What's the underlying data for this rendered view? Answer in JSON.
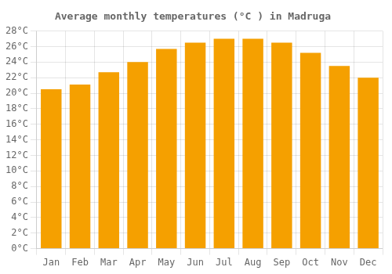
{
  "chart_data": {
    "type": "bar",
    "title": "Average monthly temperatures (°C ) in Madruga",
    "categories": [
      "Jan",
      "Feb",
      "Mar",
      "Apr",
      "May",
      "Jun",
      "Jul",
      "Aug",
      "Sep",
      "Oct",
      "Nov",
      "Dec"
    ],
    "values": [
      20.5,
      21.1,
      22.7,
      24.0,
      25.7,
      26.5,
      27.0,
      27.0,
      26.5,
      25.2,
      23.5,
      22.0
    ],
    "color": "#F5A000",
    "ylim": [
      0,
      28
    ],
    "yticks": [
      {
        "value": 0,
        "label": "0°C"
      },
      {
        "value": 2,
        "label": "2°C"
      },
      {
        "value": 4,
        "label": "4°C"
      },
      {
        "value": 6,
        "label": "6°C"
      },
      {
        "value": 8,
        "label": "8°C"
      },
      {
        "value": 10,
        "label": "10°C"
      },
      {
        "value": 12,
        "label": "12°C"
      },
      {
        "value": 14,
        "label": "14°C"
      },
      {
        "value": 16,
        "label": "16°C"
      },
      {
        "value": 18,
        "label": "18°C"
      },
      {
        "value": 20,
        "label": "20°C"
      },
      {
        "value": 22,
        "label": "22°C"
      },
      {
        "value": 24,
        "label": "24°C"
      },
      {
        "value": 26,
        "label": "26°C"
      },
      {
        "value": 28,
        "label": "28°C"
      }
    ],
    "grid": true
  }
}
